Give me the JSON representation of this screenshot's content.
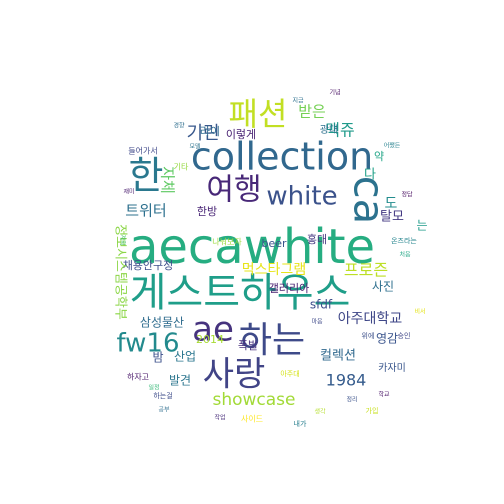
{
  "word_cloud": {
    "palette": [
      "#440154",
      "#3b528b",
      "#21918c",
      "#5ec962",
      "#fde725"
    ],
    "words": [
      {
        "text": "aecawhite",
        "rank": 1,
        "color": "#26ad81"
      },
      {
        "text": "게스트하우스",
        "rank": 2,
        "color": "#1f9e89"
      },
      {
        "text": "collection",
        "rank": 3,
        "color": "#31688e"
      },
      {
        "text": "여행",
        "rank": 4,
        "color": "#482878"
      },
      {
        "text": "패션",
        "rank": 5,
        "color": "#c2df23"
      },
      {
        "text": "하는",
        "rank": 6,
        "color": "#3e4a89"
      },
      {
        "text": "사랑",
        "rank": 7,
        "color": "#414487"
      },
      {
        "text": "ae",
        "rank": 8,
        "color": "#46337e"
      },
      {
        "text": "한",
        "rank": 9,
        "color": "#2a788e"
      },
      {
        "text": "white",
        "rank": 10,
        "color": "#3b528b"
      },
      {
        "text": "ca",
        "rank": 11,
        "color": "#2c728e"
      },
      {
        "text": "fw16",
        "rank": 12,
        "color": "#238a8d"
      },
      {
        "text": "프로즌",
        "rank": 13,
        "color": "#bddf26"
      },
      {
        "text": "기린",
        "rank": 14,
        "color": "#38588c"
      },
      {
        "text": "맥쥬",
        "rank": 15,
        "color": "#1f9a8a"
      },
      {
        "text": "트위터",
        "rank": 16,
        "color": "#2d708e"
      },
      {
        "text": "showcase",
        "rank": 17,
        "color": "#a2da37"
      },
      {
        "text": "1984",
        "rank": 18,
        "color": "#365c8d"
      },
      {
        "text": "먹스타그램",
        "rank": 19,
        "color": "#e7e419"
      },
      {
        "text": "아주대학교",
        "rank": 20,
        "color": "#3f4788"
      },
      {
        "text": "삼성물산",
        "rank": 21,
        "color": "#2f6c8e"
      },
      {
        "text": "탈모",
        "rank": 22,
        "color": "#443a83"
      },
      {
        "text": "받은",
        "rank": 23,
        "color": "#75d054"
      },
      {
        "text": "컬렉션",
        "rank": 24,
        "color": "#30698e"
      },
      {
        "text": "사진",
        "rank": 25,
        "color": "#2e6f8e"
      },
      {
        "text": "도",
        "rank": 26,
        "color": "#228c8d"
      },
      {
        "text": "영감",
        "rank": 27,
        "color": "#3a548c"
      },
      {
        "text": "갤러리아",
        "rank": 28,
        "color": "#481f70"
      },
      {
        "text": "자체",
        "rank": 29,
        "color": "#5ec962"
      },
      {
        "text": "채용안구정",
        "rank": 30,
        "color": "#3d4e8a"
      },
      {
        "text": "한방",
        "rank": 31,
        "color": "#482475"
      },
      {
        "text": "홍대",
        "rank": 32,
        "color": "#453781"
      },
      {
        "text": "산업",
        "rank": 33,
        "color": "#2a768e"
      },
      {
        "text": "발견",
        "rank": 34,
        "color": "#2b758e"
      },
      {
        "text": "밤",
        "rank": 35,
        "color": "#3c508b"
      },
      {
        "text": "2014",
        "rank": 36,
        "color": "#a8db34"
      },
      {
        "text": "폭발",
        "rank": 37,
        "color": "#472f7d"
      },
      {
        "text": "beer",
        "rank": 38,
        "color": "#3a538b"
      },
      {
        "text": "sfdf",
        "rank": 39,
        "color": "#3d4d8a"
      },
      {
        "text": "라이",
        "rank": 40,
        "color": "#2f6b8e"
      },
      {
        "text": "이렇게",
        "rank": 41,
        "color": "#482173"
      },
      {
        "text": "약",
        "rank": 42,
        "color": "#20a486"
      },
      {
        "text": "카자미",
        "rank": 43,
        "color": "#39568c"
      },
      {
        "text": "는",
        "rank": 44,
        "color": "#1e9b8a"
      },
      {
        "text": "정보시스템공학부",
        "rank": 45,
        "color": "#8bd646"
      },
      {
        "text": "나눠보자",
        "rank": 46,
        "color": "#9bd93c"
      },
      {
        "text": "광대",
        "rank": 47,
        "color": "#2d718e"
      },
      {
        "text": "다",
        "rank": 48,
        "color": "#1fa088"
      },
      {
        "text": "하는걸",
        "rank": 49,
        "color": "#3e4c8a"
      },
      {
        "text": "들어가서",
        "rank": 50,
        "color": "#3f4889"
      },
      {
        "text": "기타",
        "rank": 51,
        "color": "#95d840"
      },
      {
        "text": "사이드",
        "rank": 52,
        "color": "#fde725"
      },
      {
        "text": "하자고",
        "rank": 53,
        "color": "#481769"
      },
      {
        "text": "가입",
        "rank": 54,
        "color": "#c8e020"
      },
      {
        "text": "내가",
        "rank": 55,
        "color": "#277f8e"
      },
      {
        "text": "승인",
        "rank": 56,
        "color": "#3f4788"
      },
      {
        "text": "온즈라는",
        "rank": 57,
        "color": "#25848e"
      },
      {
        "text": "아주대",
        "rank": 58,
        "color": "#d5e21a"
      },
      {
        "text": "경향",
        "rank": 59,
        "color": "#2e6e8e"
      },
      {
        "text": "위에",
        "rank": 60,
        "color": "#3c4f8a"
      },
      {
        "text": "생각",
        "rank": 61,
        "color": "#b5de2b"
      },
      {
        "text": "작업",
        "rank": 62,
        "color": "#472c7a"
      },
      {
        "text": "어쨌든",
        "rank": 63,
        "color": "#26818e"
      },
      {
        "text": "모델",
        "rank": 64,
        "color": "#2c738e"
      },
      {
        "text": "정답",
        "rank": 65,
        "color": "#470d60"
      },
      {
        "text": "재미",
        "rank": 66,
        "color": "#481b6d"
      },
      {
        "text": "기념",
        "rank": 67,
        "color": "#471063"
      },
      {
        "text": "비서",
        "rank": 68,
        "color": "#e5e419"
      },
      {
        "text": "계획",
        "rank": 69,
        "color": "#4ac16d"
      },
      {
        "text": "정리",
        "rank": 70,
        "color": "#3b528b"
      },
      {
        "text": "지금",
        "rank": 71,
        "color": "#2d708e"
      },
      {
        "text": "일정",
        "rank": 72,
        "color": "#37b878"
      },
      {
        "text": "학교",
        "rank": 73,
        "color": "#481467"
      },
      {
        "text": "공부",
        "rank": 74,
        "color": "#2e6e8e"
      },
      {
        "text": "처음",
        "rank": 75,
        "color": "#22a785"
      },
      {
        "text": "마음",
        "rank": 76,
        "color": "#3e4989"
      }
    ]
  }
}
